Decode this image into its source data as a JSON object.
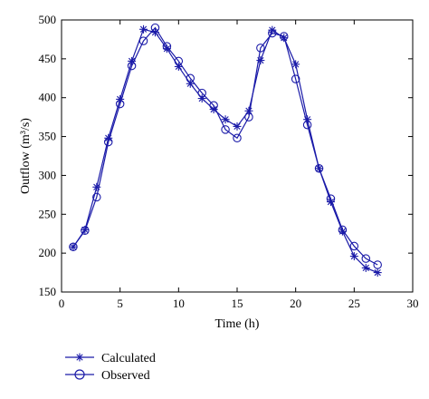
{
  "chart_data": {
    "type": "line",
    "x": [
      1,
      2,
      3,
      4,
      5,
      6,
      7,
      8,
      9,
      10,
      11,
      12,
      13,
      14,
      15,
      16,
      17,
      18,
      19,
      20,
      21,
      22,
      23,
      24,
      25,
      26,
      27
    ],
    "series": [
      {
        "name": "Calculated",
        "marker": "asterisk",
        "color": "#1a1aa8",
        "values": [
          208,
          230,
          285,
          348,
          398,
          447,
          488,
          484,
          463,
          440,
          418,
          399,
          385,
          372,
          363,
          383,
          448,
          487,
          477,
          443,
          372,
          309,
          266,
          228,
          196,
          181,
          175
        ]
      },
      {
        "name": "Observed",
        "marker": "circle",
        "color": "#1a1aa8",
        "values": [
          208,
          229,
          272,
          343,
          392,
          441,
          473,
          490,
          466,
          447,
          425,
          406,
          390,
          359,
          348,
          375,
          464,
          483,
          479,
          424,
          365,
          309,
          270,
          230,
          209,
          193,
          185
        ]
      }
    ],
    "xlabel": "Time (h)",
    "ylabel": "Outflow (m³/s)",
    "xlim": [
      0,
      30
    ],
    "ylim": [
      150,
      500
    ],
    "xticks": [
      0,
      5,
      10,
      15,
      20,
      25,
      30
    ],
    "yticks": [
      150,
      200,
      250,
      300,
      350,
      400,
      450,
      500
    ],
    "grid": false,
    "legend_position": "below"
  }
}
